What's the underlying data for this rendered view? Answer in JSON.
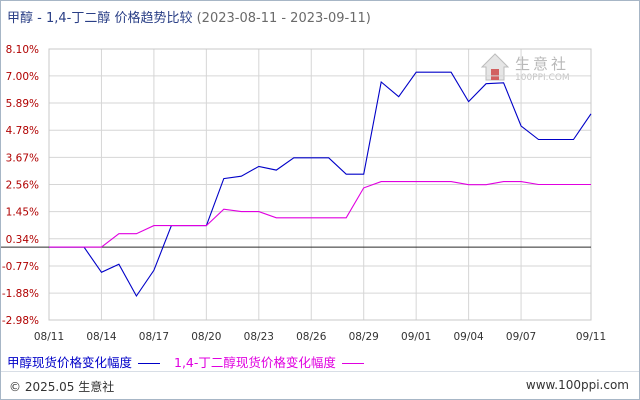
{
  "title": {
    "main": "甲醇 - 1,4-丁二醇 价格趋势比较",
    "range": "(2023-08-11 - 2023-09-11)"
  },
  "logo": {
    "text": "生意社",
    "url": "100PPI.COM"
  },
  "footer": {
    "copyright": "© 2025.05 生意社",
    "url": "www.100ppi.com"
  },
  "colors": {
    "series1": "#0000c8",
    "series2": "#e000e0",
    "zero": "#2a2a2a",
    "grid": "#d6d6d6",
    "axisLabels": "#b00000"
  },
  "chart_data": {
    "type": "line",
    "x": [
      "08/11",
      "08/12",
      "08/13",
      "08/14",
      "08/15",
      "08/16",
      "08/17",
      "08/18",
      "08/19",
      "08/20",
      "08/21",
      "08/22",
      "08/23",
      "08/24",
      "08/25",
      "08/26",
      "08/27",
      "08/28",
      "08/29",
      "08/30",
      "08/31",
      "09/01",
      "09/02",
      "09/03",
      "09/04",
      "09/05",
      "09/06",
      "09/07",
      "09/08",
      "09/09",
      "09/10",
      "09/11"
    ],
    "xticks": [
      "08/11",
      "08/14",
      "08/17",
      "08/20",
      "08/23",
      "08/26",
      "08/29",
      "09/01",
      "09/04",
      "09/07",
      "09/11"
    ],
    "yticks": [
      "8.10%",
      "7.00%",
      "5.89%",
      "4.78%",
      "3.67%",
      "2.56%",
      "1.45%",
      "0.34%",
      "-0.77%",
      "-1.88%",
      "-2.98%"
    ],
    "ylim": [
      -2.98,
      8.1
    ],
    "grid": true,
    "series": [
      {
        "name": "甲醇现货价格变化幅度",
        "values": [
          0,
          0,
          0,
          -1.03,
          -0.7,
          -2.0,
          -0.95,
          0.88,
          0.88,
          0.88,
          2.8,
          2.9,
          3.3,
          3.15,
          3.65,
          3.65,
          3.65,
          2.98,
          2.98,
          6.75,
          6.15,
          7.15,
          7.15,
          7.15,
          5.95,
          6.68,
          6.72,
          4.95,
          4.4,
          4.4,
          4.4,
          5.45
        ]
      },
      {
        "name": "1,4-丁二醇现货价格变化幅度",
        "values": [
          0,
          0,
          0,
          0,
          0.55,
          0.55,
          0.88,
          0.88,
          0.88,
          0.88,
          1.55,
          1.45,
          1.45,
          1.2,
          1.2,
          1.2,
          1.2,
          1.2,
          2.42,
          2.68,
          2.68,
          2.68,
          2.68,
          2.68,
          2.55,
          2.55,
          2.68,
          2.68,
          2.56,
          2.56,
          2.56,
          2.56
        ]
      }
    ]
  }
}
